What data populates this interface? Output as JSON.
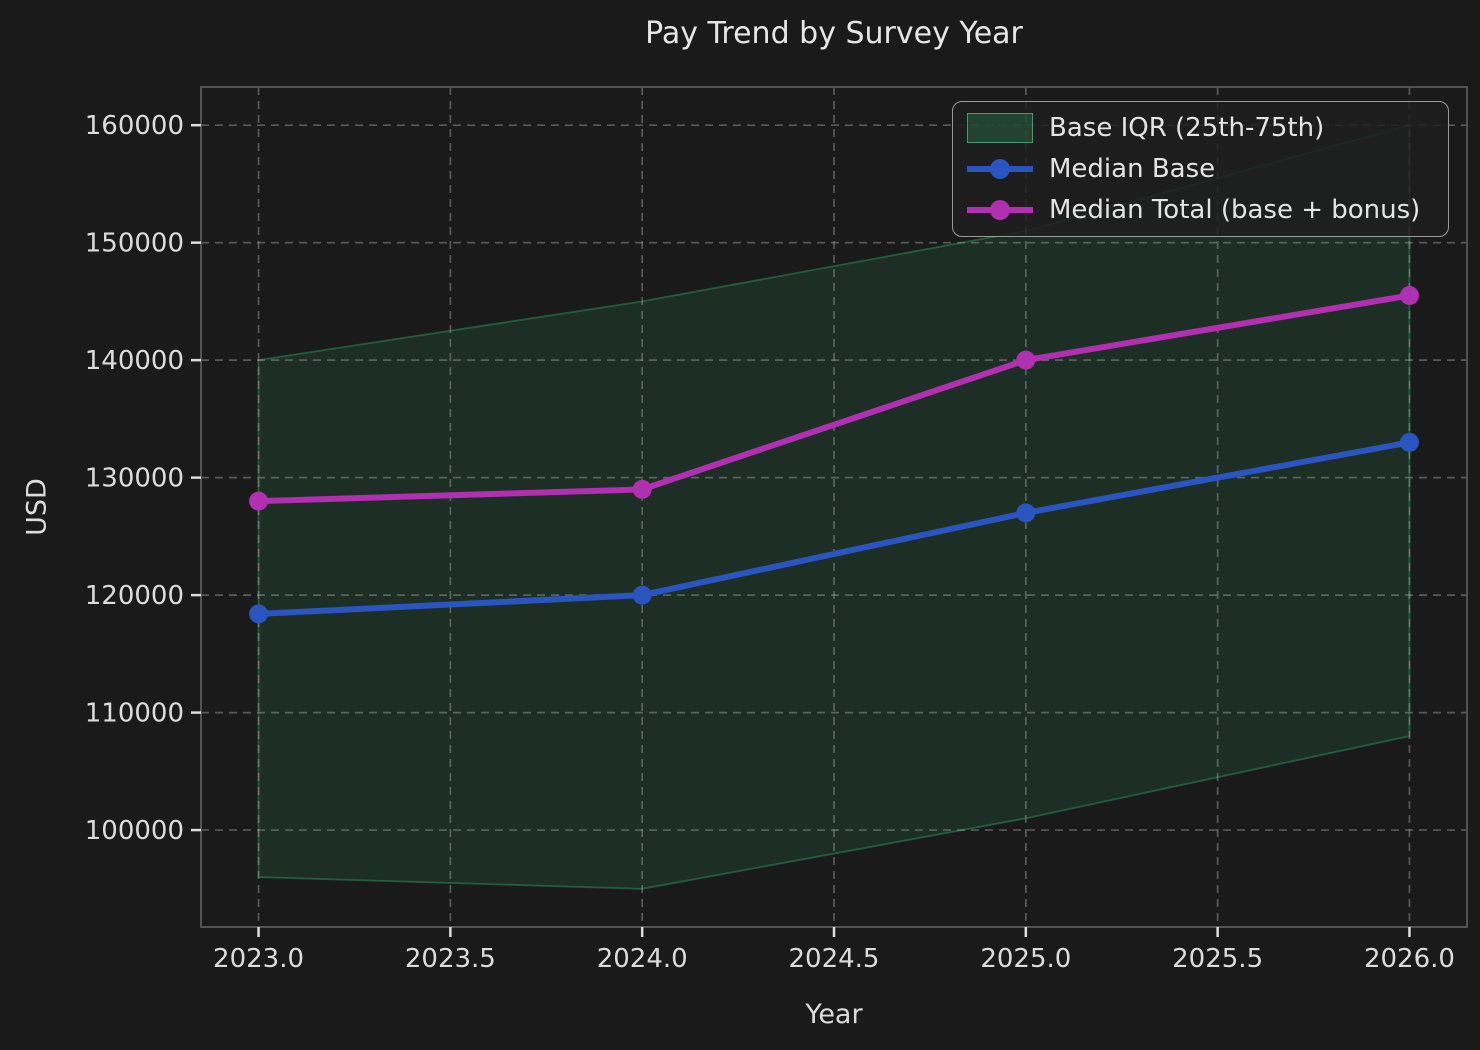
{
  "chart_data": {
    "type": "line",
    "title": "Pay Trend by Survey Year",
    "xlabel": "Year",
    "ylabel": "USD",
    "x": [
      2023,
      2024,
      2025,
      2026
    ],
    "series": [
      {
        "name": "Base IQR (25th-75th)",
        "style": "band",
        "lower": [
          96000,
          95000,
          101000,
          108000
        ],
        "upper": [
          140000,
          145000,
          151000,
          160000
        ],
        "color": "#2e8b57",
        "fill_opacity": 0.18
      },
      {
        "name": "Median Base",
        "style": "line-markers",
        "values": [
          118400,
          120000,
          127000,
          133000
        ],
        "color": "#2a54c0"
      },
      {
        "name": "Median Total (base + bonus)",
        "style": "line-markers",
        "values": [
          128000,
          129000,
          140000,
          145500
        ],
        "color": "#b12fb1"
      }
    ],
    "xlim": [
      2022.85,
      2026.15
    ],
    "ylim": [
      91750,
      163250
    ],
    "x_ticks": [
      2023.0,
      2023.5,
      2024.0,
      2024.5,
      2025.0,
      2025.5,
      2026.0
    ],
    "x_tick_labels": [
      "2023.0",
      "2023.5",
      "2024.0",
      "2024.5",
      "2025.0",
      "2025.5",
      "2026.0"
    ],
    "y_ticks": [
      100000,
      110000,
      120000,
      130000,
      140000,
      150000,
      160000
    ],
    "y_tick_labels": [
      "100000",
      "110000",
      "120000",
      "130000",
      "140000",
      "150000",
      "160000"
    ],
    "grid": true,
    "legend": {
      "position": "upper right",
      "items": [
        {
          "label": "Base IQR (25th-75th)",
          "swatch": "band",
          "color": "#2e8b57"
        },
        {
          "label": "Median Base",
          "swatch": "line",
          "color": "#2a54c0"
        },
        {
          "label": "Median Total (base + bonus)",
          "swatch": "line",
          "color": "#b12fb1"
        }
      ]
    },
    "colors": {
      "background": "#1a1a1a",
      "text": "#dcdcdc",
      "grid": "#b0b0b0",
      "spine": "#585858",
      "tick": "#dddddd"
    }
  }
}
